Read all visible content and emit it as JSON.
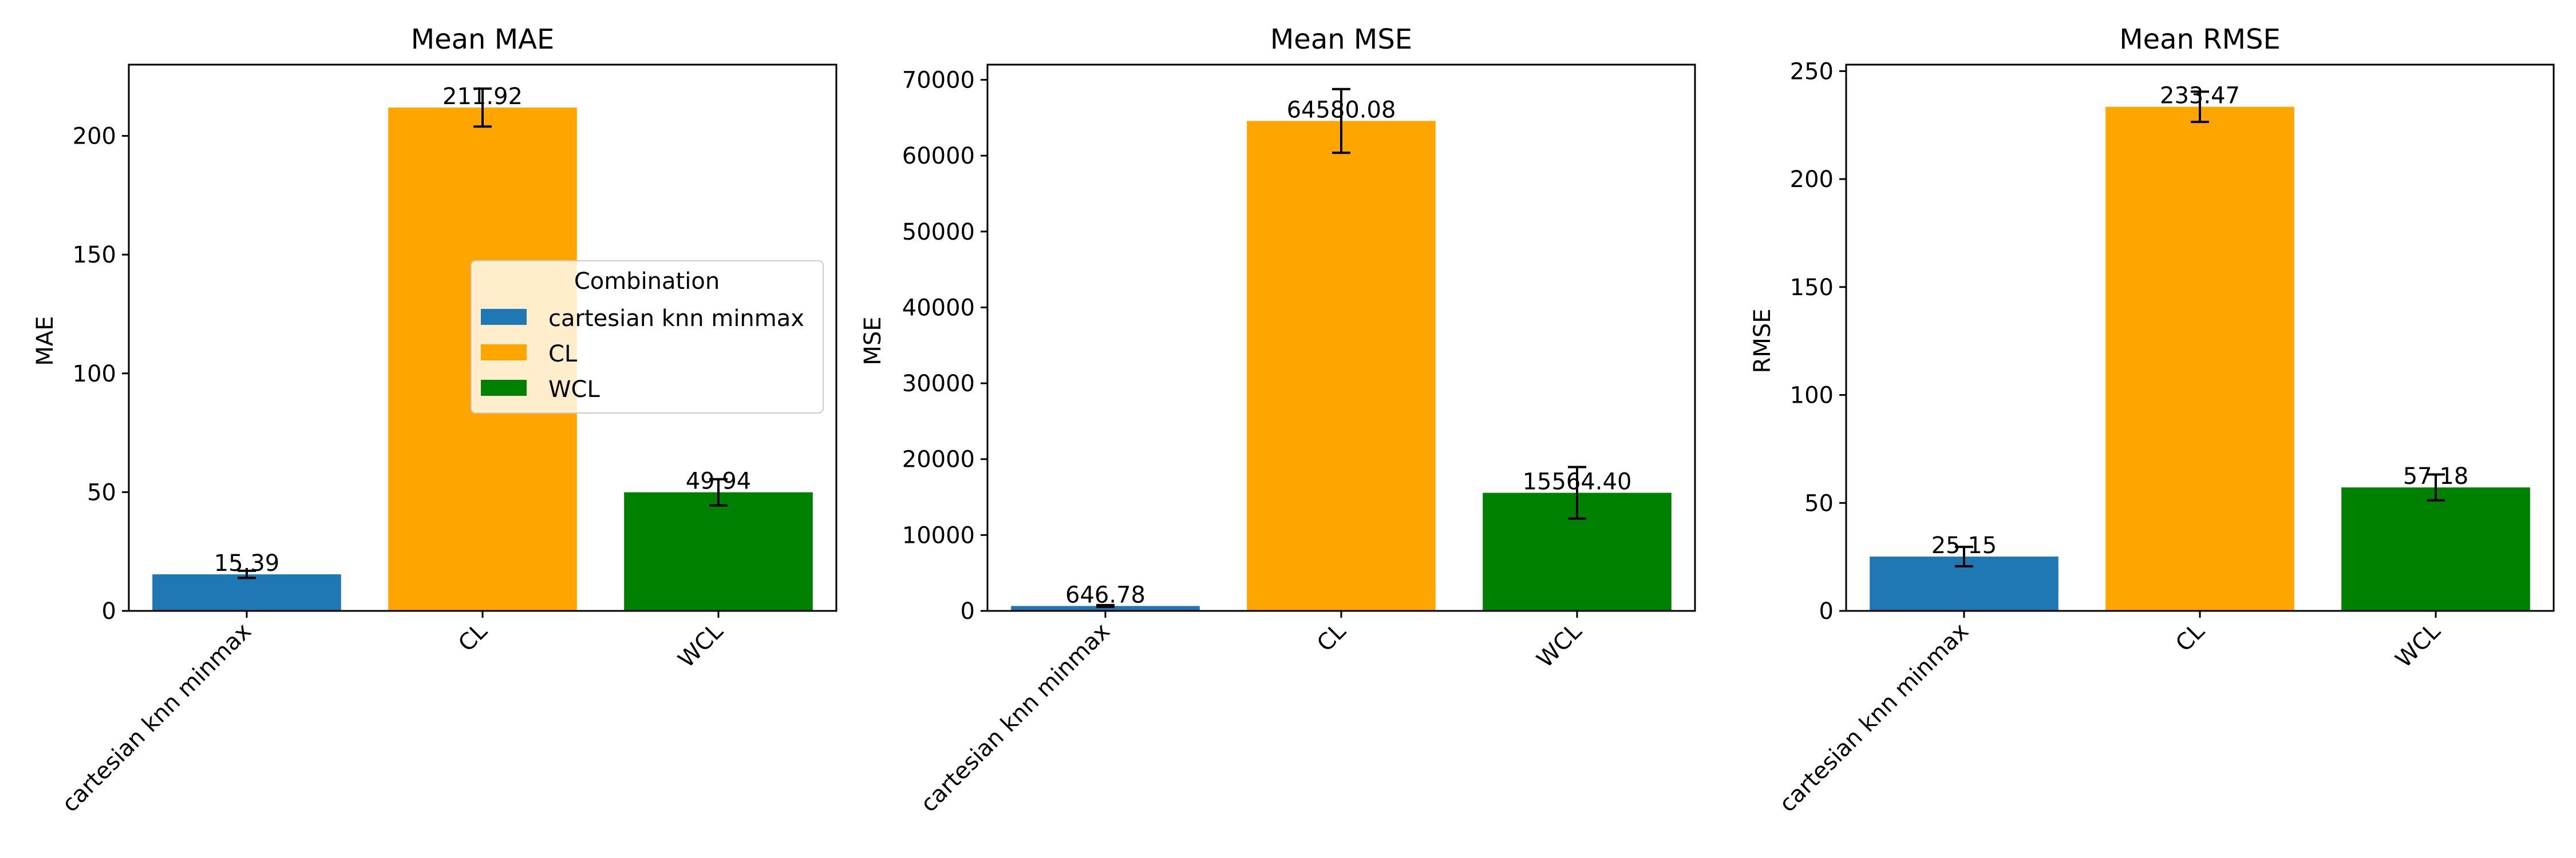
{
  "chart_data": [
    {
      "type": "bar",
      "title": "Mean MAE",
      "xlabel": "",
      "ylabel": "MAE",
      "categories": [
        "cartesian knn minmax",
        "CL",
        "WCL"
      ],
      "values": [
        15.39,
        211.92,
        49.94
      ],
      "errors": [
        1.5,
        8.0,
        5.5
      ],
      "value_labels": [
        "15.39",
        "211.92",
        "49.94"
      ],
      "colors": [
        "#1f77b4",
        "#ffa500",
        "#008000"
      ],
      "ylim": [
        0,
        230
      ],
      "yticks": [
        0,
        50,
        100,
        150,
        200
      ],
      "ytick_labels": [
        "0",
        "50",
        "100",
        "150",
        "200"
      ],
      "legend": {
        "title": "Combination",
        "position": "center-right",
        "entries": [
          "cartesian knn minmax",
          "CL",
          "WCL"
        ]
      }
    },
    {
      "type": "bar",
      "title": "Mean MSE",
      "xlabel": "",
      "ylabel": "MSE",
      "categories": [
        "cartesian knn minmax",
        "CL",
        "WCL"
      ],
      "values": [
        646.78,
        64580.08,
        15564.4
      ],
      "errors": [
        120,
        4200,
        3400
      ],
      "value_labels": [
        "646.78",
        "64580.08",
        "15564.40"
      ],
      "colors": [
        "#1f77b4",
        "#ffa500",
        "#008000"
      ],
      "ylim": [
        0,
        72000
      ],
      "yticks": [
        0,
        10000,
        20000,
        30000,
        40000,
        50000,
        60000,
        70000
      ],
      "ytick_labels": [
        "0",
        "10000",
        "20000",
        "30000",
        "40000",
        "50000",
        "60000",
        "70000"
      ]
    },
    {
      "type": "bar",
      "title": "Mean RMSE",
      "xlabel": "",
      "ylabel": "RMSE",
      "categories": [
        "cartesian knn minmax",
        "CL",
        "WCL"
      ],
      "values": [
        25.15,
        233.47,
        57.18
      ],
      "errors": [
        4.5,
        7.0,
        6.0
      ],
      "value_labels": [
        "25.15",
        "233.47",
        "57.18"
      ],
      "colors": [
        "#1f77b4",
        "#ffa500",
        "#008000"
      ],
      "ylim": [
        0,
        253
      ],
      "yticks": [
        0,
        50,
        100,
        150,
        200,
        250
      ],
      "ytick_labels": [
        "0",
        "50",
        "100",
        "150",
        "200",
        "250"
      ]
    }
  ]
}
